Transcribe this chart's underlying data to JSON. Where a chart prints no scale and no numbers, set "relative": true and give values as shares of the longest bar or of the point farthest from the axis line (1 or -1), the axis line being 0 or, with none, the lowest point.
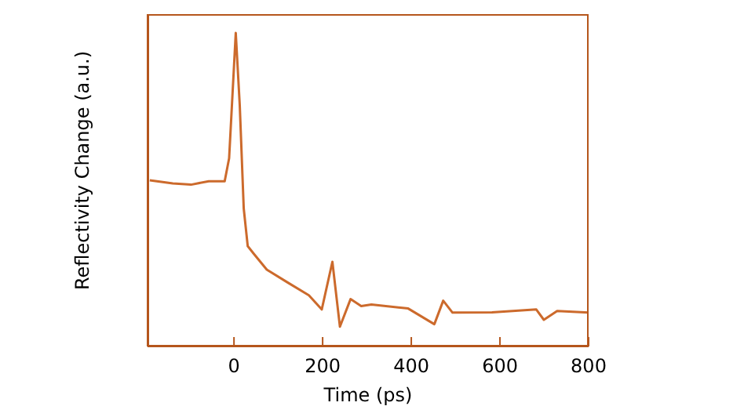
{
  "chart_data": {
    "type": "line",
    "xlabel": "Time (ps)",
    "ylabel": "Reflectivity Change (a.u.)",
    "relative": true,
    "tick_labels": "x",
    "xlim": [
      -195,
      800
    ],
    "xticks": [
      0,
      200,
      400,
      600,
      800
    ],
    "marker": "none",
    "line_style": "solid",
    "series": [
      {
        "color": "#cc6a2c",
        "x": [
          -190,
          -138,
          -97,
          -57,
          -21,
          -11,
          4,
          13,
          22,
          31,
          45,
          74,
          121,
          169,
          198,
          222,
          239,
          263,
          287,
          310,
          393,
          452,
          472,
          493,
          582,
          682,
          699,
          729,
          800
        ],
        "values": [
          0.53,
          0.52,
          0.516,
          0.527,
          0.527,
          0.6,
          1.0,
          0.77,
          0.44,
          0.32,
          0.295,
          0.245,
          0.204,
          0.163,
          0.118,
          0.27,
          0.063,
          0.151,
          0.129,
          0.134,
          0.121,
          0.071,
          0.146,
          0.108,
          0.109,
          0.118,
          0.085,
          0.113,
          0.108
        ]
      }
    ]
  }
}
